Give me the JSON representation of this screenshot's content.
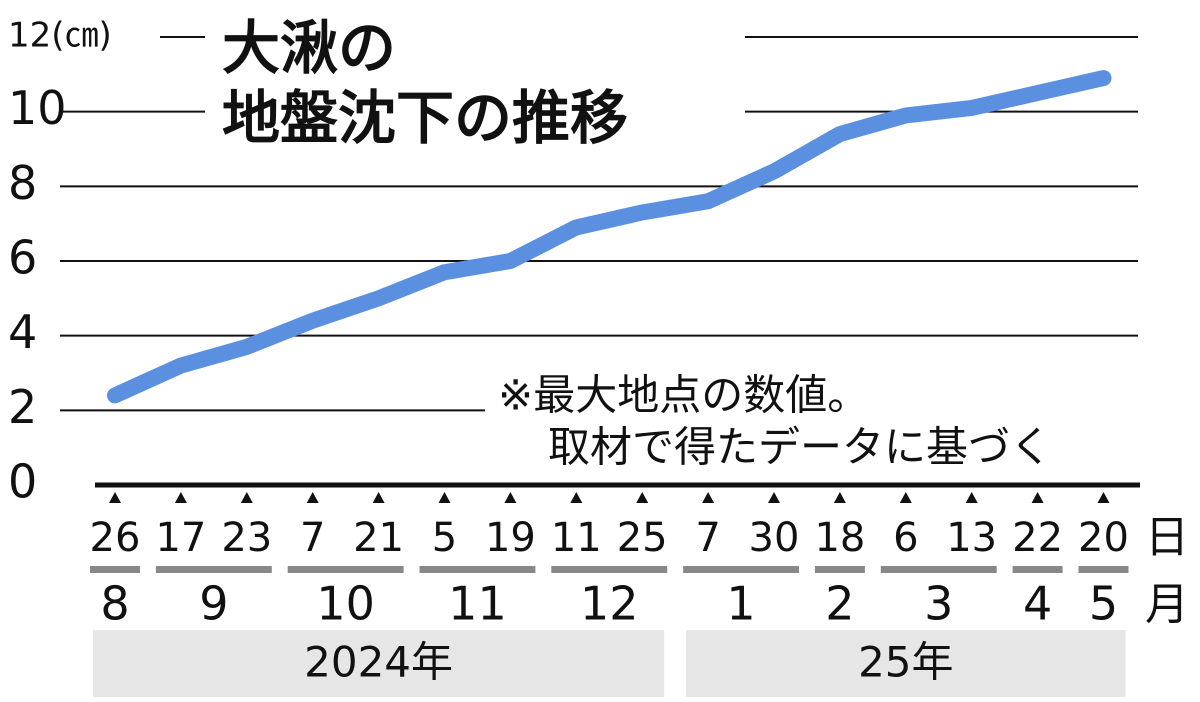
{
  "chart_data": {
    "type": "line",
    "title": [
      "大湫の",
      "地盤沈下の推移"
    ],
    "annotations": [
      "※最大地点の数値。",
      "取材で得たデータに基づく"
    ],
    "day_unit": "日",
    "month_unit": "月",
    "years": [
      {
        "label": "2024年",
        "months": [
          {
            "label": "8",
            "days": [
              "26"
            ]
          },
          {
            "label": "9",
            "days": [
              "17",
              "23"
            ]
          },
          {
            "label": "10",
            "days": [
              "7",
              "21"
            ]
          },
          {
            "label": "11",
            "days": [
              "5",
              "19"
            ]
          },
          {
            "label": "12",
            "days": [
              "11",
              "25"
            ]
          }
        ]
      },
      {
        "label": "25年",
        "months": [
          {
            "label": "1",
            "days": [
              "7",
              "30"
            ]
          },
          {
            "label": "2",
            "days": [
              "18"
            ]
          },
          {
            "label": "3",
            "days": [
              "6",
              "13"
            ]
          },
          {
            "label": "4",
            "days": [
              "22"
            ]
          },
          {
            "label": "5",
            "days": [
              "20"
            ]
          }
        ]
      }
    ],
    "values": [
      2.4,
      3.2,
      3.7,
      4.4,
      5.0,
      5.7,
      6.0,
      6.9,
      7.3,
      7.6,
      8.4,
      9.4,
      9.9,
      10.1,
      10.5,
      10.9
    ],
    "color": "#5b8fe0",
    "ylim": [
      0,
      12
    ],
    "yticks": [
      0,
      2,
      4,
      6,
      8,
      10,
      {
        "value": 12,
        "label": "12(㎝)"
      }
    ],
    "grid": true
  }
}
